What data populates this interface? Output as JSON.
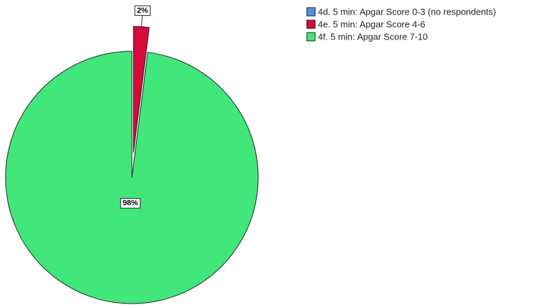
{
  "chart_data": {
    "type": "pie",
    "categories": [
      "4d. 5 min: Apgar Score 0-3 (no respondents)",
      "4e. 5 min: Apgar Score 4-6",
      "4f. 5 min: Apgar Score 7-10"
    ],
    "values": [
      0,
      2,
      98
    ],
    "value_labels": [
      null,
      "2%",
      "98%"
    ],
    "colors": [
      "#4d8fe0",
      "#d40a3c",
      "#41e77b"
    ],
    "explode": [
      false,
      true,
      false
    ],
    "legend": "top-right"
  }
}
